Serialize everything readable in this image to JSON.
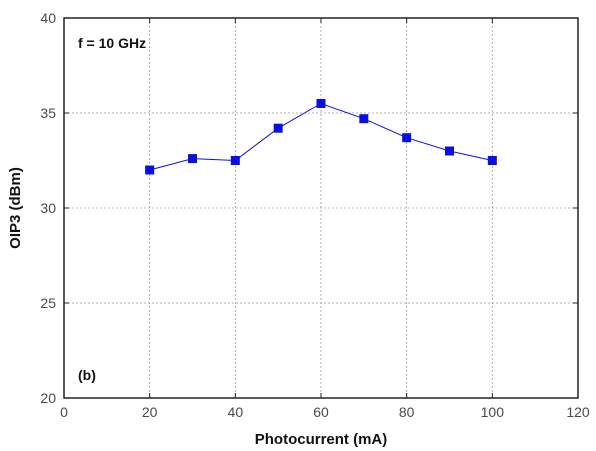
{
  "chart_data": {
    "type": "line",
    "title": "",
    "xlabel": "Photocurrent (mA)",
    "ylabel": "OIP3 (dBm)",
    "xlim": [
      0,
      120
    ],
    "ylim": [
      20,
      40
    ],
    "xticks": [
      0,
      20,
      40,
      60,
      80,
      100,
      120
    ],
    "yticks": [
      20,
      25,
      30,
      35,
      40
    ],
    "grid": true,
    "legend": "none",
    "annotations": [
      "f = 10 GHz",
      "(b)"
    ],
    "series": [
      {
        "name": "",
        "marker": "square",
        "color": "#0a10e0",
        "x": [
          20,
          30,
          40,
          50,
          60,
          70,
          80,
          90,
          100
        ],
        "y": [
          32.0,
          32.6,
          32.5,
          34.2,
          35.5,
          34.7,
          33.7,
          33.0,
          32.5
        ]
      }
    ]
  }
}
